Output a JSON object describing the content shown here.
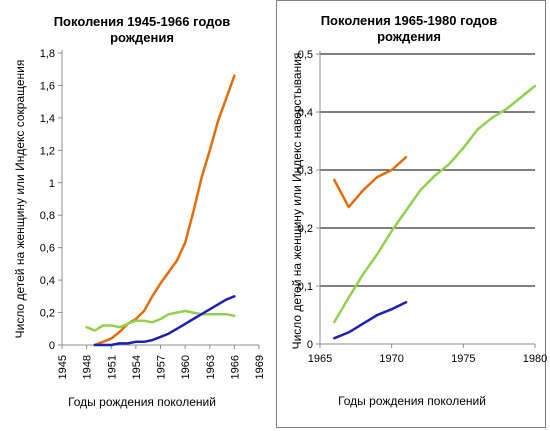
{
  "chart_data": [
    {
      "type": "line",
      "title": "Поколения 1945-1966  годов рождения",
      "title_lines": [
        "Поколения 1945-1966  годов",
        "рождения"
      ],
      "xlabel": "Годы рождения поколений",
      "ylabel": "Число детей на женщину или Индекс сокращения",
      "xlim": [
        1945,
        1969
      ],
      "ylim": [
        0,
        1.8
      ],
      "x_ticks": [
        1945,
        1948,
        1951,
        1954,
        1957,
        1960,
        1963,
        1966,
        1969
      ],
      "y_ticks": [
        "0",
        "0,2",
        "0,4",
        "0,6",
        "0,8",
        "1",
        "1,2",
        "1,4",
        "1,6",
        "1,8"
      ],
      "y_tick_values": [
        0,
        0.2,
        0.4,
        0.6,
        0.8,
        1.0,
        1.2,
        1.4,
        1.6,
        1.8
      ],
      "grid": false,
      "series": [
        {
          "color": "#e36c0a",
          "x": [
            1949,
            1950,
            1951,
            1952,
            1953,
            1954,
            1955,
            1956,
            1957,
            1958,
            1959,
            1960,
            1961,
            1962,
            1963,
            1964,
            1965,
            1966
          ],
          "values": [
            0.0,
            0.02,
            0.04,
            0.08,
            0.13,
            0.16,
            0.21,
            0.3,
            0.38,
            0.45,
            0.52,
            0.63,
            0.82,
            1.03,
            1.2,
            1.38,
            1.52,
            1.66
          ]
        },
        {
          "color": "#92d050",
          "x": [
            1948,
            1949,
            1950,
            1951,
            1952,
            1953,
            1954,
            1955,
            1956,
            1957,
            1958,
            1959,
            1960,
            1961,
            1962,
            1963,
            1964,
            1965,
            1966
          ],
          "values": [
            0.11,
            0.09,
            0.12,
            0.12,
            0.11,
            0.13,
            0.15,
            0.15,
            0.14,
            0.16,
            0.19,
            0.2,
            0.21,
            0.2,
            0.19,
            0.19,
            0.19,
            0.19,
            0.18
          ]
        },
        {
          "color": "#1f1fb4",
          "x": [
            1949,
            1950,
            1951,
            1952,
            1953,
            1954,
            1955,
            1956,
            1957,
            1958,
            1959,
            1960,
            1961,
            1962,
            1963,
            1964,
            1965,
            1966
          ],
          "values": [
            0.0,
            0.0,
            0.0,
            0.01,
            0.01,
            0.02,
            0.02,
            0.03,
            0.05,
            0.07,
            0.1,
            0.13,
            0.16,
            0.19,
            0.22,
            0.25,
            0.28,
            0.3
          ]
        }
      ]
    },
    {
      "type": "line",
      "title": "Поколения 1965-1980  годов рождения",
      "title_lines": [
        "Поколения 1965-1980  годов",
        "рождения"
      ],
      "xlabel": "Годы рождения поколений",
      "ylabel": "Число детей на женщину или Индекс наверстывания",
      "xlim": [
        1965,
        1980
      ],
      "ylim": [
        0,
        0.5
      ],
      "x_ticks": [
        1965,
        1970,
        1975,
        1980
      ],
      "y_ticks": [
        "0",
        "0,1",
        "0,2",
        "0,3",
        "0,4",
        "0,5"
      ],
      "y_tick_values": [
        0,
        0.1,
        0.2,
        0.3,
        0.4,
        0.5
      ],
      "grid": true,
      "series": [
        {
          "color": "#e36c0a",
          "x": [
            1966,
            1967,
            1968,
            1969,
            1970,
            1971
          ],
          "values": [
            0.283,
            0.236,
            0.265,
            0.288,
            0.3,
            0.322
          ]
        },
        {
          "color": "#92d050",
          "x": [
            1966,
            1967,
            1968,
            1969,
            1970,
            1971,
            1972,
            1973,
            1974,
            1975,
            1976,
            1977,
            1978,
            1979,
            1980
          ],
          "values": [
            0.038,
            0.08,
            0.12,
            0.155,
            0.195,
            0.23,
            0.265,
            0.29,
            0.31,
            0.338,
            0.37,
            0.39,
            0.405,
            0.425,
            0.445
          ]
        },
        {
          "color": "#1f1fb4",
          "x": [
            1966,
            1967,
            1968,
            1969,
            1970,
            1971
          ],
          "values": [
            0.01,
            0.02,
            0.035,
            0.05,
            0.06,
            0.072
          ]
        }
      ]
    }
  ]
}
